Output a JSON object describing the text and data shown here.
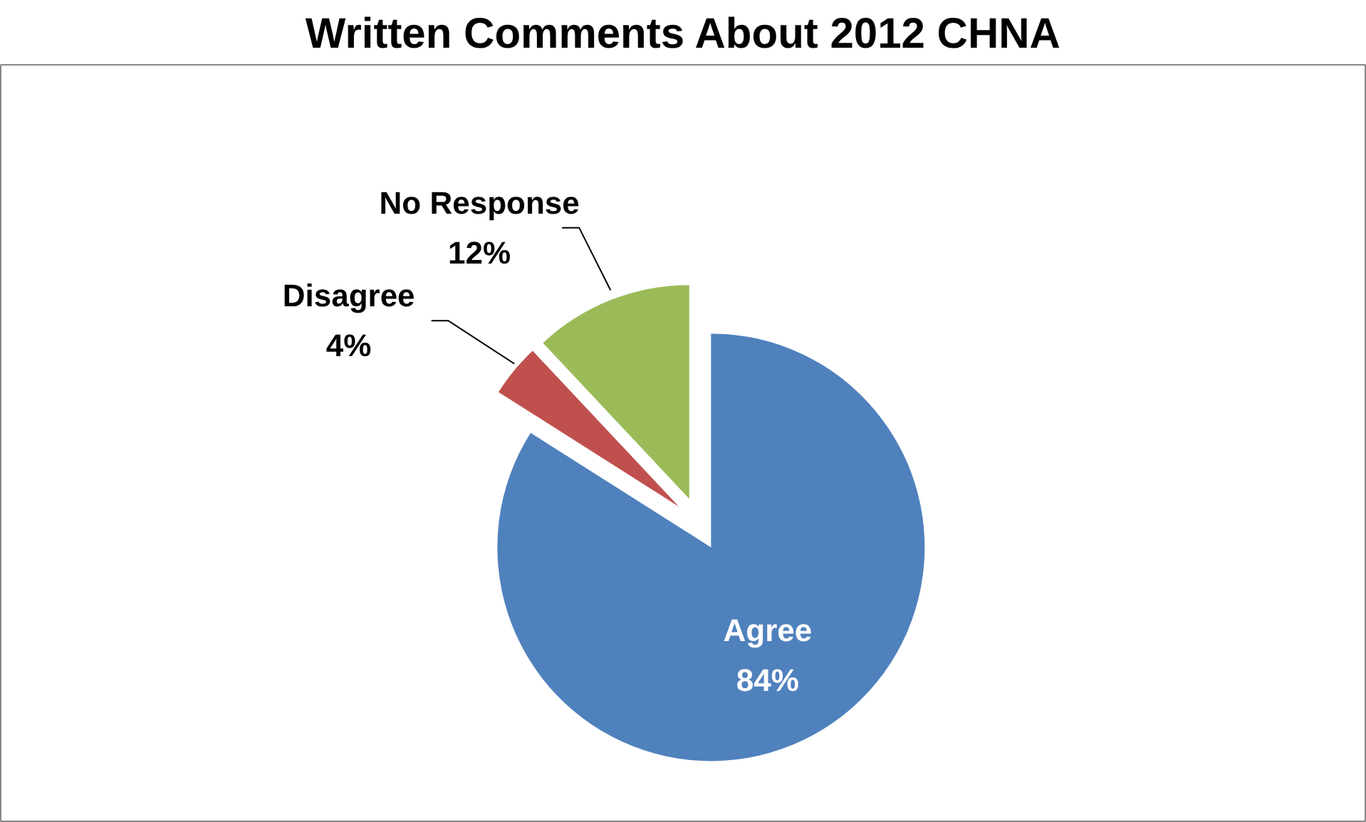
{
  "chart_data": {
    "type": "pie",
    "title": "Written Comments About 2012 CHNA",
    "categories": [
      "Agree",
      "Disagree",
      "No Response"
    ],
    "values": [
      84,
      4,
      12
    ],
    "value_labels": [
      "84%",
      "4%",
      "12%"
    ],
    "colors": [
      "#4f81bd",
      "#c0504d",
      "#9bbb59"
    ]
  }
}
